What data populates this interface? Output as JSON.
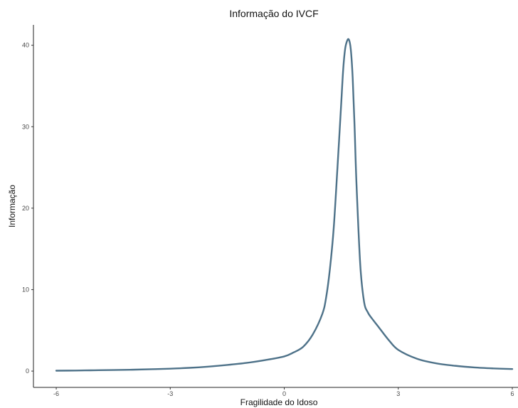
{
  "chart_data": {
    "type": "line",
    "title": "Informação do IVCF",
    "xlabel": "Fragilidade do Idoso",
    "ylabel": "Informação",
    "xlim": [
      -6.6,
      6.15
    ],
    "ylim": [
      -2.0,
      42.5
    ],
    "x_ticks": [
      -6,
      -3,
      0,
      3,
      6
    ],
    "x_tick_labels": [
      "-6",
      "-3",
      "0",
      "3",
      "6"
    ],
    "y_ticks": [
      0,
      10,
      20,
      30,
      40
    ],
    "y_tick_labels": [
      "0",
      "10",
      "20",
      "30",
      "40"
    ],
    "grid": false,
    "line_color": "#4e7289",
    "series": [
      {
        "x": [
          -6.0,
          -5.5,
          -5.0,
          -4.5,
          -4.0,
          -3.5,
          -3.0,
          -2.5,
          -2.0,
          -1.5,
          -1.0,
          -0.5,
          0.0,
          0.25,
          0.5,
          0.75,
          1.0,
          1.1,
          1.2,
          1.3,
          1.4,
          1.5,
          1.55,
          1.6,
          1.65,
          1.7,
          1.75,
          1.8,
          1.85,
          1.9,
          2.0,
          2.1,
          2.2,
          2.3,
          2.5,
          2.75,
          3.0,
          3.5,
          4.0,
          4.5,
          5.0,
          5.5,
          6.0
        ],
        "y": [
          0.05,
          0.07,
          0.1,
          0.13,
          0.17,
          0.23,
          0.3,
          0.4,
          0.55,
          0.75,
          1.0,
          1.35,
          1.8,
          2.3,
          3.0,
          4.5,
          7.0,
          9.0,
          12.5,
          17.5,
          25.0,
          33.0,
          37.0,
          39.5,
          40.5,
          40.7,
          39.5,
          36.0,
          30.0,
          23.0,
          13.0,
          8.5,
          7.2,
          6.5,
          5.3,
          3.8,
          2.6,
          1.5,
          0.95,
          0.65,
          0.45,
          0.33,
          0.25
        ]
      }
    ]
  }
}
